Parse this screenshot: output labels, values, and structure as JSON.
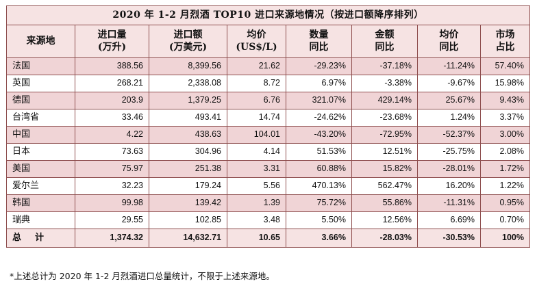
{
  "table": {
    "title": "2020 年 1-2 月烈酒 TOP10 进口来源地情况（按进口额降序排列）",
    "headers": [
      {
        "line1": "来源地",
        "line2": ""
      },
      {
        "line1": "进口量",
        "line2": "(万升)"
      },
      {
        "line1": "进口额",
        "line2": "(万美元)"
      },
      {
        "line1": "均价",
        "line2": "(US$/L)"
      },
      {
        "line1": "数量",
        "line2": "同比"
      },
      {
        "line1": "金额",
        "line2": "同比"
      },
      {
        "line1": "均价",
        "line2": "同比"
      },
      {
        "line1": "市场",
        "line2": "占比"
      }
    ],
    "rows": [
      [
        "法国",
        "388.56",
        "8,399.56",
        "21.62",
        "-29.23%",
        "-37.18%",
        "-11.24%",
        "57.40%"
      ],
      [
        "英国",
        "268.21",
        "2,338.08",
        "8.72",
        "6.97%",
        "-3.38%",
        "-9.67%",
        "15.98%"
      ],
      [
        "德国",
        "203.9",
        "1,379.25",
        "6.76",
        "321.07%",
        "429.14%",
        "25.67%",
        "9.43%"
      ],
      [
        "台湾省",
        "33.46",
        "493.41",
        "14.74",
        "-24.62%",
        "-23.68%",
        "1.24%",
        "3.37%"
      ],
      [
        "中国",
        "4.22",
        "438.63",
        "104.01",
        "-43.20%",
        "-72.95%",
        "-52.37%",
        "3.00%"
      ],
      [
        "日本",
        "73.63",
        "304.96",
        "4.14",
        "51.53%",
        "12.51%",
        "-25.75%",
        "2.08%"
      ],
      [
        "美国",
        "75.97",
        "251.38",
        "3.31",
        "60.88%",
        "15.82%",
        "-28.01%",
        "1.72%"
      ],
      [
        "爱尔兰",
        "32.23",
        "179.24",
        "5.56",
        "470.13%",
        "562.47%",
        "16.20%",
        "1.22%"
      ],
      [
        "韩国",
        "99.98",
        "139.42",
        "1.39",
        "75.72%",
        "55.86%",
        "-11.31%",
        "0.95%"
      ],
      [
        "瑞典",
        "29.55",
        "102.85",
        "3.48",
        "5.50%",
        "12.56%",
        "6.69%",
        "0.70%"
      ]
    ],
    "total": [
      "总计",
      "1,374.32",
      "14,632.71",
      "10.65",
      "3.66%",
      "-28.03%",
      "-30.53%",
      "100%"
    ]
  },
  "note": "*上述总计为 2020 年 1-2 月烈酒进口总量统计，不限于上述来源地。",
  "colors": {
    "border": "#8d4d4d",
    "shade": "#f0d4d6",
    "header_bg": "#f6e3e3"
  }
}
